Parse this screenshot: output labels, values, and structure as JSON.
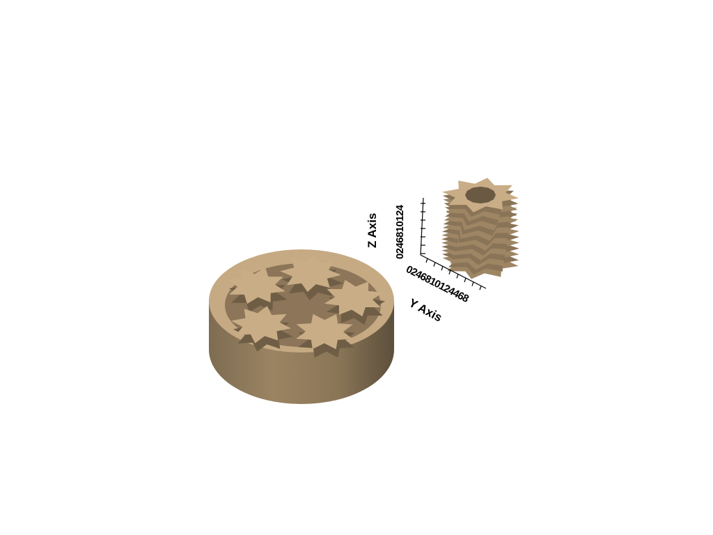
{
  "viewer": {
    "background": "#ffffff",
    "model_color": "#c9ad86",
    "axes": {
      "z_title": "Z Axis",
      "y_title": "Y Axis",
      "z_ticks": "0246810124",
      "y_ticks": "0246810124468"
    },
    "objects": [
      {
        "name": "ring-gear-housing",
        "gear_count": 5
      },
      {
        "name": "helical-gear",
        "teeth": 8
      }
    ]
  }
}
